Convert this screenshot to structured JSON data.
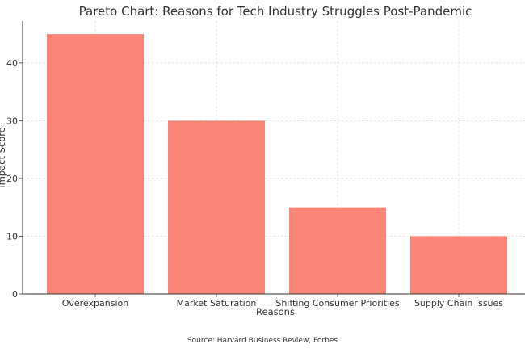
{
  "chart_data": {
    "type": "bar",
    "title": "Pareto Chart: Reasons for Tech Industry Struggles Post-Pandemic",
    "xlabel": "Reasons",
    "ylabel": "Impact Score",
    "categories": [
      "Overexpansion",
      "Market Saturation",
      "Shifting Consumer Priorities",
      "Supply Chain Issues"
    ],
    "values": [
      45,
      30,
      15,
      10
    ],
    "ylim": [
      0,
      47.25
    ],
    "yticks": [
      0,
      10,
      20,
      30,
      40
    ],
    "grid": true,
    "bar_color": "#fa8072",
    "footnote": "Source: Harvard Business Review, Forbes"
  }
}
